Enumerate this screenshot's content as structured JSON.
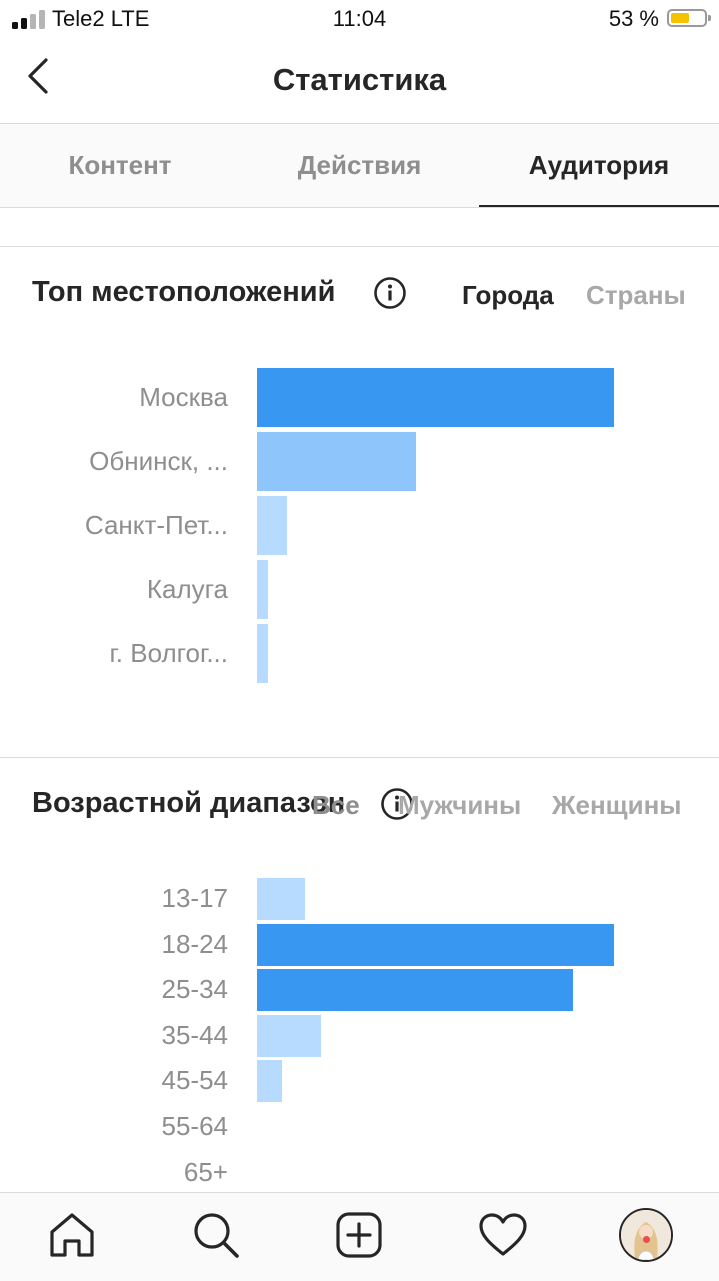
{
  "status_bar": {
    "carrier": "Tele2  LTE",
    "time": "11:04",
    "battery": "53 %"
  },
  "header": {
    "title": "Статистика"
  },
  "tabs": [
    {
      "label": "Контент",
      "active": false
    },
    {
      "label": "Действия",
      "active": false
    },
    {
      "label": "Аудитория",
      "active": true
    }
  ],
  "locations": {
    "title": "Топ местоположений",
    "filters": [
      {
        "label": "Города",
        "active": true
      },
      {
        "label": "Страны",
        "active": false
      }
    ],
    "chart_data": {
      "type": "bar",
      "orientation": "horizontal",
      "categories": [
        "Москва",
        "Обнинск, ...",
        "Санкт-Пет...",
        "Калуга",
        "г. Волгог..."
      ],
      "values": [
        100,
        44.5,
        8.5,
        3,
        3
      ],
      "highlight": [
        true,
        false,
        false,
        false,
        false
      ],
      "colors": {
        "highlight": "#3897f0",
        "secondary": "#8ec5fb",
        "light": "#b7daff"
      }
    }
  },
  "age": {
    "title": "Возрастной диапазон",
    "filters": [
      {
        "label": "Все",
        "active": true
      },
      {
        "label": "Мужчины",
        "active": false
      },
      {
        "label": "Женщины",
        "active": false
      }
    ],
    "chart_data": {
      "type": "bar",
      "orientation": "horizontal",
      "categories": [
        "13-17",
        "18-24",
        "25-34",
        "35-44",
        "45-54",
        "55-64",
        "65+"
      ],
      "values": [
        13.5,
        100,
        88.5,
        18,
        7,
        0,
        0
      ],
      "highlight": [
        false,
        true,
        true,
        false,
        false,
        false,
        false
      ],
      "colors": {
        "highlight": "#3897f0",
        "light": "#b7daff"
      }
    }
  },
  "bottom_nav": {
    "items": [
      "home-icon",
      "search-icon",
      "add-post-icon",
      "activity-heart-icon",
      "profile-avatar"
    ],
    "notification_color": "#ed4956"
  }
}
